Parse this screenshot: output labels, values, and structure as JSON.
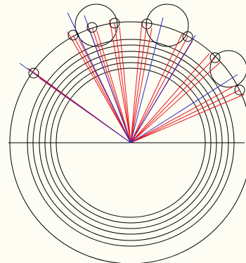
{
  "colors": {
    "background": "#FDFDF3",
    "outline": "#000000",
    "red_lines": "#E8141A",
    "blue_lines": "#2B2BC8"
  }
}
